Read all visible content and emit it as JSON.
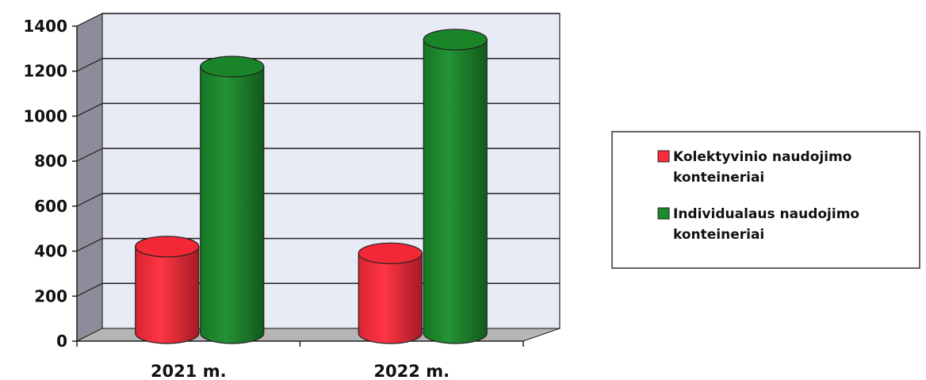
{
  "chart_data": {
    "type": "bar",
    "style": "3d-cylinder",
    "categories": [
      "2021 m.",
      "2022 m."
    ],
    "series": [
      {
        "name": "Kolektyvinio naudojimo konteineriai",
        "values": [
          385,
          355
        ],
        "color": "#ff2a3a"
      },
      {
        "name": "Individualaus naudojimo konteineriai",
        "values": [
          1185,
          1305
        ],
        "color": "#1a8c2a"
      }
    ],
    "yticks": [
      "0",
      "200",
      "400",
      "600",
      "800",
      "1000",
      "1200",
      "1400"
    ],
    "ylim": [
      0,
      1400
    ],
    "grid": true,
    "legend_position": "right",
    "legend_lines": [
      [
        "Kolektyvinio naudojimo",
        "konteineriai"
      ],
      [
        "Individualaus naudojimo",
        "konteineriai"
      ]
    ],
    "wall_color": "#e8eaf5",
    "side_wall_color": "#8c8c9a",
    "floor_color": "#b5b5b5"
  }
}
